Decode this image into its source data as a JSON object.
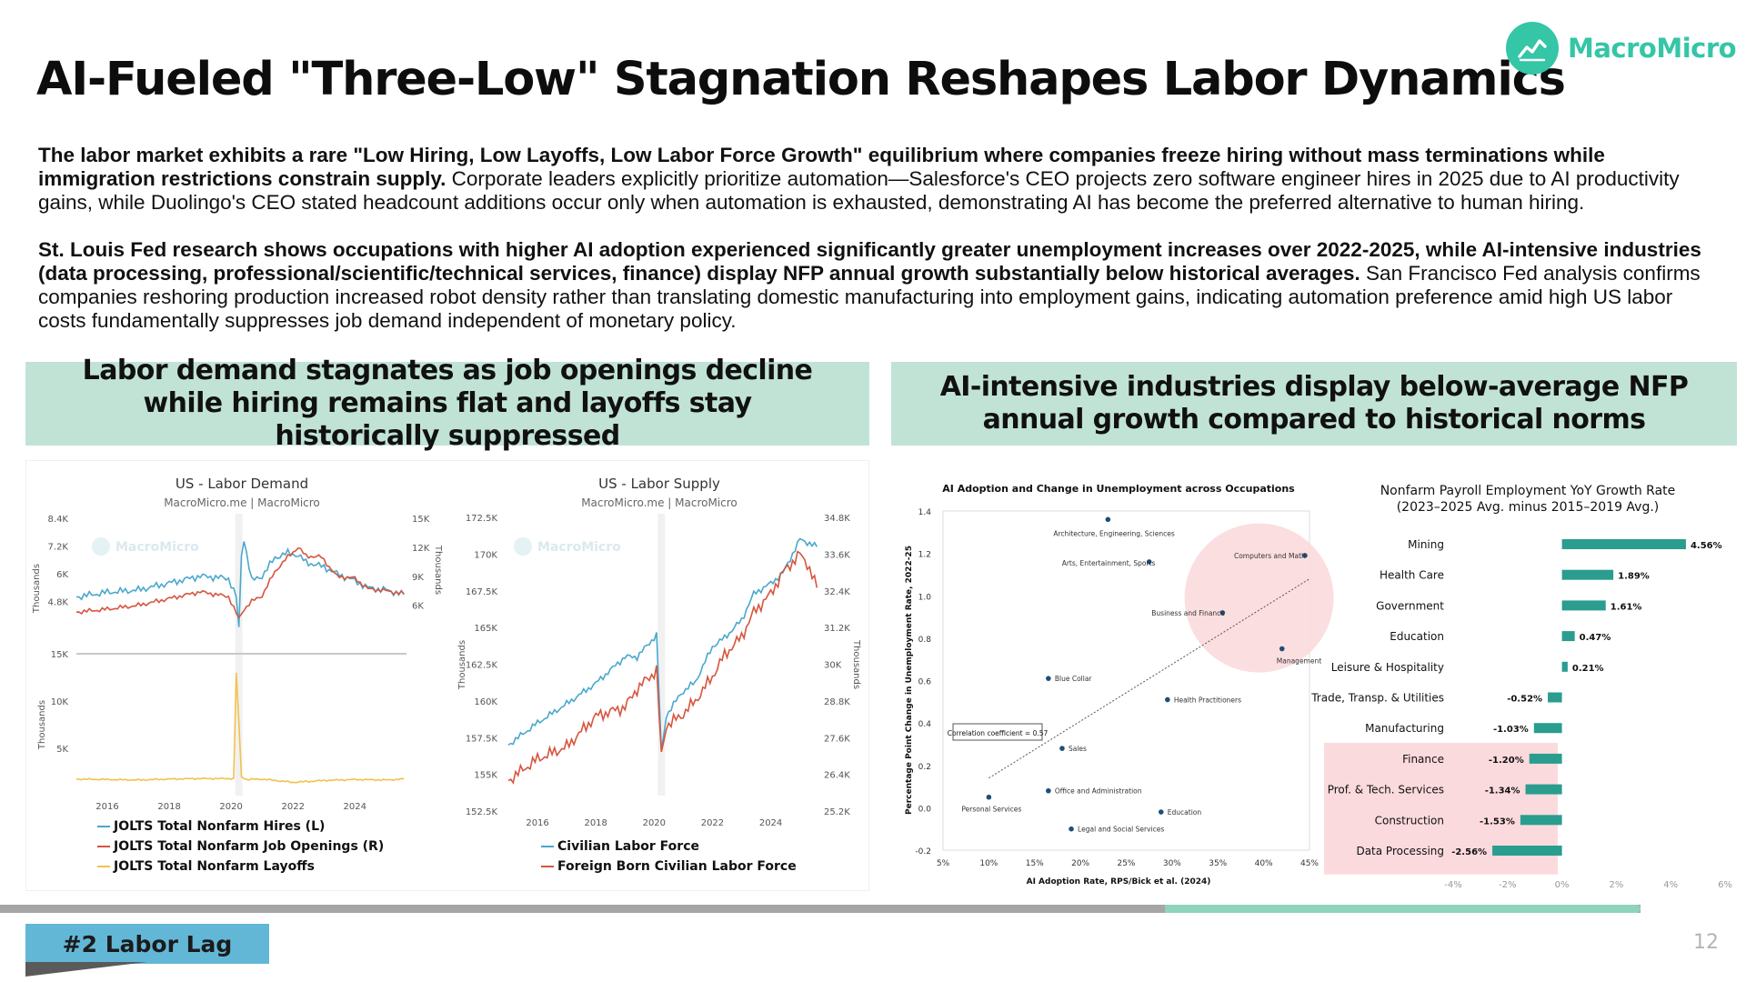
{
  "slide": {
    "title": "AI-Fueled \"Three-Low\" Stagnation Reshapes Labor Dynamics",
    "logo_text": "MacroMicro",
    "logo_icon": "macromicro-logo-icon",
    "section_tag": "#2 Labor Lag",
    "page_number": "12",
    "progress": 0.71,
    "accent_color": "#34c6a6",
    "panel_color": "#c1e3d6",
    "tag_color": "#62b7d7"
  },
  "paragraphs": [
    {
      "bold": "The labor market exhibits a rare \"Low Hiring, Low Layoffs, Low Labor Force Growth\" equilibrium where companies freeze hiring without mass terminations while immigration restrictions constrain supply.",
      "normal": " Corporate leaders explicitly prioritize automation—Salesforce's CEO projects zero software engineer hires in 2025 due to AI productivity gains, while Duolingo's CEO stated headcount additions occur only when automation is exhausted, demonstrating AI has become the preferred alternative to human hiring."
    },
    {
      "bold": "St. Louis Fed research shows occupations with higher AI adoption experienced significantly greater unemployment increases over 2022-2025, while AI-intensive industries (data processing, professional/scientific/technical services, finance) display NFP annual growth substantially below historical averages.",
      "normal": " San Francisco Fed analysis confirms companies reshoring production increased robot density rather than translating domestic manufacturing into employment gains, indicating automation preference amid high US labor costs fundamentally suppresses job demand independent of monetary policy."
    }
  ],
  "panels": {
    "left_header": "Labor demand stagnates as job openings decline while hiring remains flat and layoffs stay historically suppressed",
    "right_header": "AI-intensive industries display below-average NFP annual growth compared to historical norms"
  },
  "chart_data": [
    {
      "type": "line",
      "title": "US - Labor Demand",
      "subtitle": "MacroMicro.me | MacroMicro",
      "watermark": "MacroMicro",
      "x_ticks": [
        "2016",
        "2018",
        "2020",
        "2022",
        "2024"
      ],
      "xlim": [
        "2015-01",
        "2025-09"
      ],
      "top_left_axis": {
        "label": "Thousands",
        "ticks": [
          "4.8K",
          "6K",
          "7.2K",
          "8.4K"
        ],
        "ylim": [
          3800,
          8400
        ]
      },
      "top_right_axis": {
        "label": "Thousands",
        "ticks": [
          "6K",
          "9K",
          "12K",
          "15K"
        ],
        "ylim": [
          4000,
          15000
        ]
      },
      "bottom_left_axis": {
        "label": "Thousands",
        "ticks": [
          "5K",
          "10K",
          "15K"
        ],
        "ylim": [
          0,
          15000
        ]
      },
      "series": [
        {
          "name": "JOLTS Total Nonfarm Hires (L)",
          "color": "#4aa8cc",
          "panel": "top",
          "axis": "left",
          "x": [
            "2015-01",
            "2016-01",
            "2017-01",
            "2018-01",
            "2019-01",
            "2019-12",
            "2020-03",
            "2020-04",
            "2020-05",
            "2020-06",
            "2020-09",
            "2021-01",
            "2021-06",
            "2021-11",
            "2022-03",
            "2022-06",
            "2023-01",
            "2023-06",
            "2024-01",
            "2024-06",
            "2025-01",
            "2025-08"
          ],
          "values": [
            5000,
            5200,
            5300,
            5600,
            5900,
            5800,
            5000,
            3600,
            6800,
            7500,
            5700,
            5900,
            6700,
            6900,
            6800,
            6500,
            6300,
            6000,
            5700,
            5400,
            5300,
            5100
          ]
        },
        {
          "name": "JOLTS Total Nonfarm Job Openings (R)",
          "color": "#d6553f",
          "panel": "top",
          "axis": "right",
          "x": [
            "2015-01",
            "2016-01",
            "2017-01",
            "2018-01",
            "2019-01",
            "2019-12",
            "2020-04",
            "2020-06",
            "2020-09",
            "2021-01",
            "2021-06",
            "2021-11",
            "2022-03",
            "2022-06",
            "2022-12",
            "2023-06",
            "2024-01",
            "2024-06",
            "2025-01",
            "2025-08"
          ],
          "values": [
            5300,
            5600,
            6000,
            6700,
            7400,
            6900,
            4600,
            5600,
            6400,
            7000,
            9500,
            11000,
            12000,
            11100,
            11000,
            9000,
            8800,
            7700,
            7500,
            7200
          ]
        },
        {
          "name": "JOLTS Total Nonfarm Layoffs",
          "color": "#f2c14e",
          "panel": "bottom",
          "axis": "left",
          "x": [
            "2015-01",
            "2016-01",
            "2017-01",
            "2018-01",
            "2019-01",
            "2020-02",
            "2020-03",
            "2020-04",
            "2020-05",
            "2020-07",
            "2021-01",
            "2022-01",
            "2023-01",
            "2024-01",
            "2025-01",
            "2025-08"
          ],
          "values": [
            1750,
            1700,
            1650,
            1750,
            1800,
            1800,
            13000,
            7700,
            2000,
            1700,
            1750,
            1400,
            1600,
            1700,
            1650,
            1750
          ]
        }
      ],
      "annotation": "shaded band at 2020"
    },
    {
      "type": "line",
      "title": "US - Labor Supply",
      "subtitle": "MacroMicro.me | MacroMicro",
      "watermark": "MacroMicro",
      "x_ticks": [
        "2016",
        "2018",
        "2020",
        "2022",
        "2024"
      ],
      "xlim": [
        "2015-01",
        "2025-09"
      ],
      "left_axis": {
        "label": "Thousands",
        "ticks": [
          "152.5K",
          "155K",
          "157.5K",
          "160K",
          "162.5K",
          "165K",
          "167.5K",
          "170K",
          "172.5K"
        ],
        "ylim": [
          152500,
          172500
        ]
      },
      "right_axis": {
        "label": "Thousands",
        "ticks": [
          "25.2K",
          "26.4K",
          "27.6K",
          "28.8K",
          "30K",
          "31.2K",
          "32.4K",
          "33.6K",
          "34.8K"
        ],
        "ylim": [
          25200,
          34800
        ]
      },
      "series": [
        {
          "name": "Civilian Labor Force",
          "color": "#4aa8cc",
          "axis": "left",
          "x": [
            "2015-01",
            "2016-01",
            "2017-01",
            "2018-01",
            "2019-01",
            "2019-06",
            "2020-02",
            "2020-04",
            "2020-06",
            "2020-12",
            "2021-06",
            "2022-01",
            "2022-06",
            "2023-01",
            "2023-06",
            "2024-01",
            "2024-06",
            "2025-01",
            "2025-04",
            "2025-08"
          ],
          "values": [
            157000,
            158500,
            159800,
            161200,
            163000,
            163000,
            164500,
            156500,
            159000,
            160500,
            161300,
            163700,
            164300,
            165500,
            167300,
            168000,
            168700,
            171000,
            170800,
            170500
          ]
        },
        {
          "name": "Foreign Born Civilian Labor Force",
          "color": "#d6553f",
          "axis": "right",
          "x": [
            "2015-01",
            "2016-01",
            "2017-01",
            "2018-01",
            "2019-01",
            "2019-06",
            "2020-02",
            "2020-04",
            "2020-06",
            "2020-12",
            "2021-06",
            "2022-01",
            "2022-06",
            "2023-01",
            "2023-06",
            "2024-01",
            "2024-06",
            "2025-01",
            "2025-04",
            "2025-08"
          ],
          "values": [
            26200,
            26900,
            27300,
            28300,
            28600,
            29200,
            29800,
            27000,
            28000,
            28300,
            28800,
            29600,
            30300,
            30900,
            31700,
            32300,
            33000,
            33600,
            33300,
            32500
          ]
        }
      ],
      "annotation": "shaded band at 2020"
    },
    {
      "type": "scatter",
      "title": "AI Adoption and Change in Unemployment across Occupations",
      "xlabel": "AI Adoption Rate, RPS/Bick et al. (2024)",
      "ylabel": "Percentage Point Change in Unemployment Rate, 2022-25",
      "xlim": [
        5,
        45
      ],
      "ylim": [
        -0.2,
        1.4
      ],
      "x_ticks": [
        "5%",
        "10%",
        "15%",
        "20%",
        "25%",
        "30%",
        "35%",
        "40%",
        "45%"
      ],
      "y_ticks": [
        "-0.2",
        "0.0",
        "0.2",
        "0.4",
        "0.6",
        "0.8",
        "1.0",
        "1.2",
        "1.4"
      ],
      "annotation": "Correlation coefficient = 0.57",
      "trendline": {
        "x": [
          10,
          45
        ],
        "y": [
          0.14,
          1.08
        ]
      },
      "highlight": "Computers and Math, Business and Finance, Management",
      "points": [
        {
          "label": "Architecture, Engineering, Sciences",
          "x": 23,
          "y": 1.36
        },
        {
          "label": "Arts, Entertainment, Sports",
          "x": 27.5,
          "y": 1.16
        },
        {
          "label": "Computers and Math",
          "x": 44.5,
          "y": 1.19
        },
        {
          "label": "Business and Finance",
          "x": 35.5,
          "y": 0.92
        },
        {
          "label": "Management",
          "x": 42,
          "y": 0.75
        },
        {
          "label": "Blue Collar",
          "x": 16.5,
          "y": 0.61
        },
        {
          "label": "Health Practitioners",
          "x": 29.5,
          "y": 0.51
        },
        {
          "label": "Sales",
          "x": 18,
          "y": 0.28
        },
        {
          "label": "Office and Administration",
          "x": 16.5,
          "y": 0.08
        },
        {
          "label": "Personal Services",
          "x": 10,
          "y": 0.05
        },
        {
          "label": "Education",
          "x": 28.8,
          "y": -0.02
        },
        {
          "label": "Legal and Social Services",
          "x": 19,
          "y": -0.1
        }
      ]
    },
    {
      "type": "bar",
      "orientation": "horizontal",
      "title": "Nonfarm Payroll Employment YoY Growth Rate",
      "subtitle": "(2023–2025 Avg. minus 2015–2019 Avg.)",
      "xlim": [
        -4,
        6
      ],
      "x_ticks": [
        "-4%",
        "-2%",
        "0%",
        "2%",
        "4%",
        "6%"
      ],
      "categories": [
        "Mining",
        "Health Care",
        "Government",
        "Education",
        "Leisure & Hospitality",
        "Trade, Transp. & Utilities",
        "Manufacturing",
        "Finance",
        "Prof. & Tech. Services",
        "Construction",
        "Data Processing"
      ],
      "values": [
        4.56,
        1.89,
        1.61,
        0.47,
        0.21,
        -0.52,
        -1.03,
        -1.2,
        -1.34,
        -1.53,
        -2.56
      ],
      "labels": [
        "4.56%",
        "1.89%",
        "1.61%",
        "0.47%",
        "0.21%",
        "-0.52%",
        "-1.03%",
        "-1.20%",
        "-1.34%",
        "-1.53%",
        "-2.56%"
      ],
      "highlight": [
        "Finance",
        "Prof. & Tech. Services",
        "Construction",
        "Data Processing"
      ],
      "bar_color": "#2a9d8f"
    }
  ]
}
